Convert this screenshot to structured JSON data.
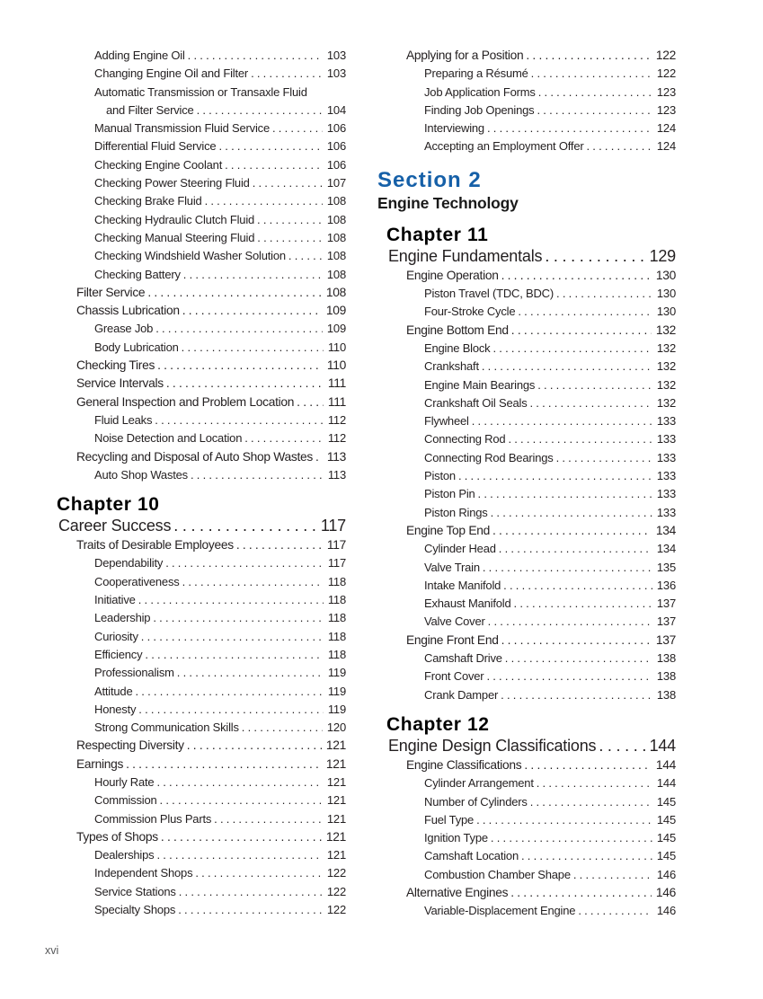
{
  "page": {
    "footer": "xvi"
  },
  "colors": {
    "section_heading": "#1660a8",
    "body_text": "#231f20"
  },
  "columns": [
    {
      "blocks": [
        {
          "type": "entries",
          "items": [
            {
              "level": 2,
              "label": "Adding Engine Oil",
              "page": "103"
            },
            {
              "level": 2,
              "label": "Changing Engine Oil and Filter",
              "page": "103"
            },
            {
              "level": 2,
              "label": "Automatic Transmission or Transaxle Fluid",
              "label2": "and Filter Service",
              "page": "104"
            },
            {
              "level": 2,
              "label": "Manual Transmission Fluid Service",
              "page": "106"
            },
            {
              "level": 2,
              "label": "Differential Fluid Service",
              "page": "106"
            },
            {
              "level": 2,
              "label": "Checking Engine Coolant",
              "page": "106"
            },
            {
              "level": 2,
              "label": "Checking Power Steering Fluid",
              "page": "107"
            },
            {
              "level": 2,
              "label": "Checking Brake Fluid",
              "page": "108"
            },
            {
              "level": 2,
              "label": "Checking Hydraulic Clutch Fluid",
              "page": "108"
            },
            {
              "level": 2,
              "label": "Checking Manual Steering Fluid",
              "page": "108"
            },
            {
              "level": 2,
              "label": "Checking Windshield Washer Solution",
              "page": "108"
            },
            {
              "level": 2,
              "label": "Checking Battery",
              "page": "108"
            },
            {
              "level": 1,
              "label": "Filter Service",
              "page": "108"
            },
            {
              "level": 1,
              "label": "Chassis Lubrication",
              "page": "109"
            },
            {
              "level": 2,
              "label": "Grease Job",
              "page": "109"
            },
            {
              "level": 2,
              "label": "Body Lubrication",
              "page": "110"
            },
            {
              "level": 1,
              "label": "Checking Tires",
              "page": "110"
            },
            {
              "level": 1,
              "label": "Service Intervals",
              "page": "111"
            },
            {
              "level": 1,
              "label": "General Inspection and Problem Location",
              "page": "111"
            },
            {
              "level": 2,
              "label": "Fluid Leaks",
              "page": "112"
            },
            {
              "level": 2,
              "label": "Noise Detection and Location",
              "page": "112"
            },
            {
              "level": 1,
              "label": "Recycling and Disposal of Auto Shop Wastes",
              "page": "113"
            },
            {
              "level": 2,
              "label": "Auto Shop Wastes",
              "page": "113"
            }
          ]
        },
        {
          "type": "chapter",
          "heading": "Chapter 10",
          "title": "Career Success",
          "page": "117",
          "items": [
            {
              "level": 1,
              "label": "Traits of Desirable Employees",
              "page": "117"
            },
            {
              "level": 2,
              "label": "Dependability",
              "page": "117"
            },
            {
              "level": 2,
              "label": "Cooperativeness",
              "page": "118"
            },
            {
              "level": 2,
              "label": "Initiative",
              "page": "118"
            },
            {
              "level": 2,
              "label": "Leadership",
              "page": "118"
            },
            {
              "level": 2,
              "label": "Curiosity",
              "page": "118"
            },
            {
              "level": 2,
              "label": "Efficiency",
              "page": "118"
            },
            {
              "level": 2,
              "label": "Professionalism",
              "page": "119"
            },
            {
              "level": 2,
              "label": "Attitude",
              "page": "119"
            },
            {
              "level": 2,
              "label": "Honesty",
              "page": "119"
            },
            {
              "level": 2,
              "label": "Strong Communication Skills",
              "page": "120"
            },
            {
              "level": 1,
              "label": "Respecting Diversity",
              "page": "121"
            },
            {
              "level": 1,
              "label": "Earnings",
              "page": "121"
            },
            {
              "level": 2,
              "label": "Hourly Rate",
              "page": "121"
            },
            {
              "level": 2,
              "label": "Commission",
              "page": "121"
            },
            {
              "level": 2,
              "label": "Commission Plus Parts",
              "page": "121"
            },
            {
              "level": 1,
              "label": "Types of Shops",
              "page": "121"
            },
            {
              "level": 2,
              "label": "Dealerships",
              "page": "121"
            },
            {
              "level": 2,
              "label": "Independent Shops",
              "page": "122"
            },
            {
              "level": 2,
              "label": "Service Stations",
              "page": "122"
            },
            {
              "level": 2,
              "label": "Specialty Shops",
              "page": "122"
            }
          ]
        }
      ]
    },
    {
      "blocks": [
        {
          "type": "entries",
          "items": [
            {
              "level": 1,
              "label": "Applying for a Position",
              "page": "122"
            },
            {
              "level": 2,
              "label": "Preparing a Résumé",
              "page": "122"
            },
            {
              "level": 2,
              "label": "Job Application Forms",
              "page": "123"
            },
            {
              "level": 2,
              "label": "Finding Job Openings",
              "page": "123"
            },
            {
              "level": 2,
              "label": "Interviewing",
              "page": "124"
            },
            {
              "level": 2,
              "label": "Accepting an Employment Offer",
              "page": "124"
            }
          ]
        },
        {
          "type": "section",
          "heading": "Section 2",
          "title": "Engine Technology"
        },
        {
          "type": "chapter",
          "heading": "Chapter 11",
          "title": "Engine Fundamentals",
          "page": "129",
          "items": [
            {
              "level": 1,
              "label": "Engine Operation",
              "page": "130"
            },
            {
              "level": 2,
              "label": "Piston Travel (TDC, BDC)",
              "page": "130"
            },
            {
              "level": 2,
              "label": "Four-Stroke Cycle",
              "page": "130"
            },
            {
              "level": 1,
              "label": "Engine Bottom End",
              "page": "132"
            },
            {
              "level": 2,
              "label": "Engine Block",
              "page": "132"
            },
            {
              "level": 2,
              "label": "Crankshaft",
              "page": "132"
            },
            {
              "level": 2,
              "label": "Engine Main Bearings",
              "page": "132"
            },
            {
              "level": 2,
              "label": "Crankshaft Oil Seals",
              "page": "132"
            },
            {
              "level": 2,
              "label": "Flywheel",
              "page": "133"
            },
            {
              "level": 2,
              "label": "Connecting Rod",
              "page": "133"
            },
            {
              "level": 2,
              "label": "Connecting Rod Bearings",
              "page": "133"
            },
            {
              "level": 2,
              "label": "Piston",
              "page": "133"
            },
            {
              "level": 2,
              "label": "Piston Pin",
              "page": "133"
            },
            {
              "level": 2,
              "label": "Piston Rings",
              "page": "133"
            },
            {
              "level": 1,
              "label": "Engine Top End",
              "page": "134"
            },
            {
              "level": 2,
              "label": "Cylinder Head",
              "page": "134"
            },
            {
              "level": 2,
              "label": "Valve Train",
              "page": "135"
            },
            {
              "level": 2,
              "label": "Intake Manifold",
              "page": "136"
            },
            {
              "level": 2,
              "label": "Exhaust Manifold",
              "page": "137"
            },
            {
              "level": 2,
              "label": "Valve Cover",
              "page": "137"
            },
            {
              "level": 1,
              "label": "Engine Front End",
              "page": "137"
            },
            {
              "level": 2,
              "label": "Camshaft Drive",
              "page": "138"
            },
            {
              "level": 2,
              "label": "Front Cover",
              "page": "138"
            },
            {
              "level": 2,
              "label": "Crank Damper",
              "page": "138"
            }
          ]
        },
        {
          "type": "chapter",
          "heading": "Chapter 12",
          "title": "Engine Design Classifications",
          "page": "144",
          "items": [
            {
              "level": 1,
              "label": "Engine Classifications",
              "page": "144"
            },
            {
              "level": 2,
              "label": "Cylinder Arrangement",
              "page": "144"
            },
            {
              "level": 2,
              "label": "Number of Cylinders",
              "page": "145"
            },
            {
              "level": 2,
              "label": "Fuel Type",
              "page": "145"
            },
            {
              "level": 2,
              "label": "Ignition Type",
              "page": "145"
            },
            {
              "level": 2,
              "label": "Camshaft Location",
              "page": "145"
            },
            {
              "level": 2,
              "label": "Combustion Chamber Shape",
              "page": "146"
            },
            {
              "level": 1,
              "label": "Alternative Engines",
              "page": "146"
            },
            {
              "level": 2,
              "label": "Variable-Displacement Engine",
              "page": "146"
            }
          ]
        }
      ]
    }
  ]
}
